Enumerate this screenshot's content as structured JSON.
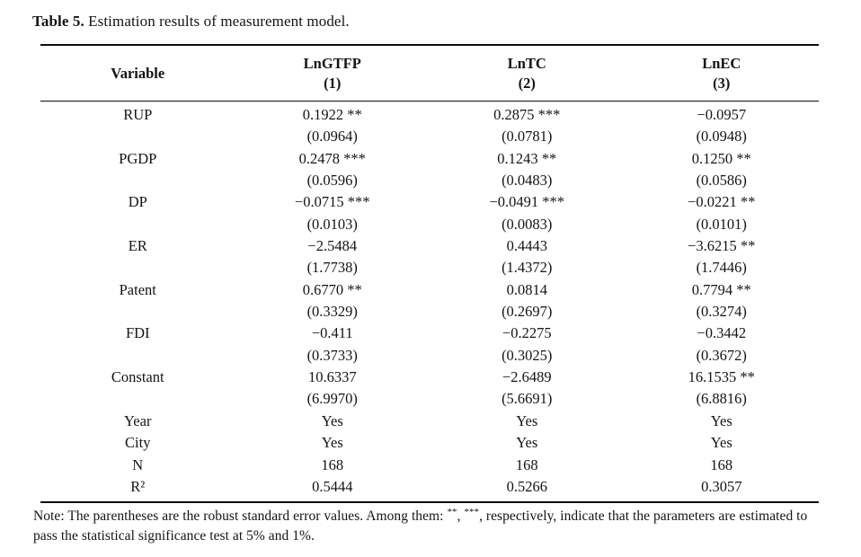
{
  "title": {
    "label": "Table 5.",
    "text": " Estimation results of measurement model."
  },
  "table": {
    "header": {
      "variable": "Variable",
      "columns": [
        {
          "name": "LnGTFP",
          "num": "(1)"
        },
        {
          "name": "LnTC",
          "num": "(2)"
        },
        {
          "name": "LnEC",
          "num": "(3)"
        }
      ]
    },
    "rows": [
      {
        "v": "RUP",
        "c": [
          "0.1922 **",
          "0.2875 ***",
          "−0.0957"
        ]
      },
      {
        "v": "",
        "c": [
          "(0.0964)",
          "(0.0781)",
          "(0.0948)"
        ]
      },
      {
        "v": "PGDP",
        "c": [
          "0.2478 ***",
          "0.1243 **",
          "0.1250 **"
        ]
      },
      {
        "v": "",
        "c": [
          "(0.0596)",
          "(0.0483)",
          "(0.0586)"
        ]
      },
      {
        "v": "DP",
        "c": [
          "−0.0715 ***",
          "−0.0491 ***",
          "−0.0221 **"
        ]
      },
      {
        "v": "",
        "c": [
          "(0.0103)",
          "(0.0083)",
          "(0.0101)"
        ]
      },
      {
        "v": "ER",
        "c": [
          "−2.5484",
          "0.4443",
          "−3.6215 **"
        ]
      },
      {
        "v": "",
        "c": [
          "(1.7738)",
          "(1.4372)",
          "(1.7446)"
        ]
      },
      {
        "v": "Patent",
        "c": [
          "0.6770 **",
          "0.0814",
          "0.7794 **"
        ]
      },
      {
        "v": "",
        "c": [
          "(0.3329)",
          "(0.2697)",
          "(0.3274)"
        ]
      },
      {
        "v": "FDI",
        "c": [
          "−0.411",
          "−0.2275",
          "−0.3442"
        ]
      },
      {
        "v": "",
        "c": [
          "(0.3733)",
          "(0.3025)",
          "(0.3672)"
        ]
      },
      {
        "v": "Constant",
        "c": [
          "10.6337",
          "−2.6489",
          "16.1535 **"
        ]
      },
      {
        "v": "",
        "c": [
          "(6.9970)",
          "(5.6691)",
          "(6.8816)"
        ]
      },
      {
        "v": "Year",
        "c": [
          "Yes",
          "Yes",
          "Yes"
        ]
      },
      {
        "v": "City",
        "c": [
          "Yes",
          "Yes",
          "Yes"
        ]
      },
      {
        "v": "N",
        "c": [
          "168",
          "168",
          "168"
        ]
      },
      {
        "v": "R²",
        "c": [
          "0.5444",
          "0.5266",
          "0.3057"
        ]
      }
    ]
  },
  "note": {
    "pre": "Note: The parentheses are the robust standard error values. Among them: ",
    "sup1": "**",
    "mid": ", ",
    "sup2": "***",
    "post": ", respectively, indicate that the parameters are estimated to pass the statistical significance test at 5% and 1%."
  },
  "colors": {
    "text": "#141414",
    "rule": "#0d0d0d",
    "background": "#ffffff"
  }
}
